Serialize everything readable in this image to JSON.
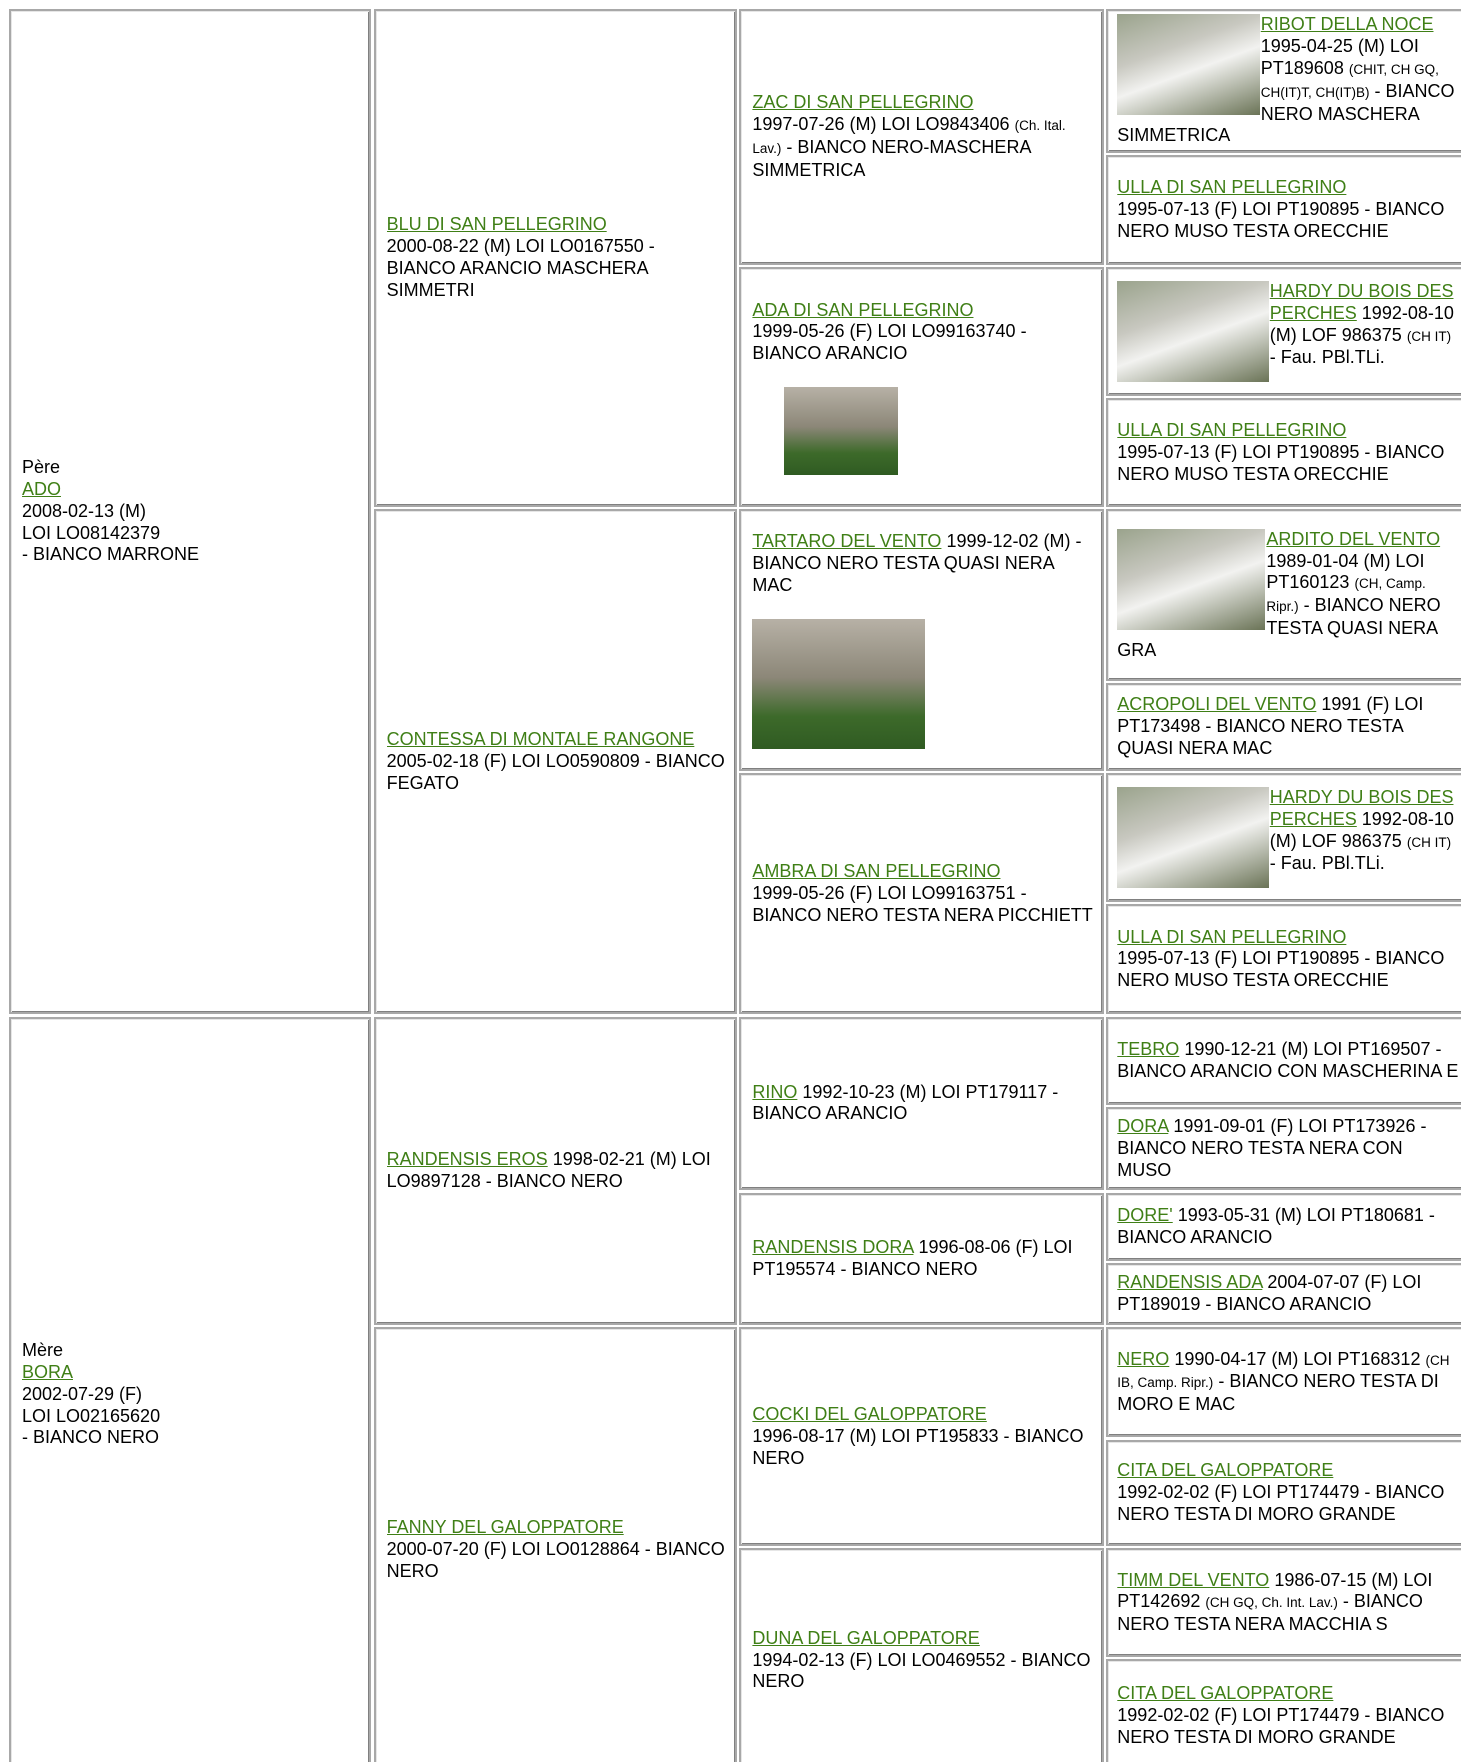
{
  "pedigree": {
    "cells": [
      {
        "label": "Père",
        "name": "ADO",
        "lines": [
          "2008-02-13 (M)",
          "LOI LO08142379",
          "- BIANCO MARRONE"
        ]
      },
      {
        "name": "BLU DI SAN PELLEGRINO",
        "info": "2000-08-22 (M) LOI LO0167550 - BIANCO ARANCIO MASCHERA SIMMETRI"
      },
      {
        "name": "ZAC DI SAN PELLEGRINO",
        "info": "1997-07-26 (M) LOI LO9843406",
        "titles": "(Ch. Ital. Lav.)",
        "rest": "- BIANCO NERO-MASCHERA SIMMETRICA"
      },
      {
        "name": "RIBOT DELLA NOCE",
        "info": "1995-04-25 (M) LOI PT189608",
        "titles": "(CHIT, CH GQ, CH(IT)T, CH(IT)B)",
        "rest": "- BIANCO NERO MASCHERA SIMMETRICA"
      },
      {
        "name": "ULLA DI SAN PELLEGRINO",
        "info": "1995-07-13 (F) LOI PT190895 - BIANCO NERO MUSO TESTA ORECCHIE"
      },
      {
        "name": "ADA DI SAN PELLEGRINO",
        "info": "1999-05-26 (F) LOI LO99163740 - BIANCO ARANCIO"
      },
      {
        "name": "HARDY DU BOIS DES PERCHES",
        "info": "1992-08-10 (M) LOF 986375",
        "titles": "(CH IT)",
        "rest": "- Fau. PBl.TLi."
      },
      {
        "name": "ULLA DI SAN PELLEGRINO",
        "info": "1995-07-13 (F) LOI PT190895 - BIANCO NERO MUSO TESTA ORECCHIE"
      },
      {
        "name": "CONTESSA DI MONTALE RANGONE",
        "info": "2005-02-18 (F) LOI LO0590809 - BIANCO FEGATO"
      },
      {
        "name": "TARTARO DEL VENTO",
        "info": "1999-12-02 (M) - BIANCO NERO TESTA QUASI NERA MAC"
      },
      {
        "name": "ARDITO DEL VENTO",
        "info": "1989-01-04 (M) LOI PT160123",
        "titles": "(CH, Camp. Ripr.)",
        "rest": "- BIANCO NERO TESTA QUASI NERA GRA"
      },
      {
        "name": "ACROPOLI DEL VENTO",
        "info": "1991 (F) LOI PT173498 - BIANCO NERO TESTA QUASI NERA MAC"
      },
      {
        "name": "AMBRA DI SAN PELLEGRINO",
        "info": "1999-05-26 (F) LOI LO99163751 - BIANCO NERO TESTA NERA PICCHIETT"
      },
      {
        "name": "HARDY DU BOIS DES PERCHES",
        "info": "1992-08-10 (M) LOF 986375",
        "titles": "(CH IT)",
        "rest": "- Fau. PBl.TLi."
      },
      {
        "name": "ULLA DI SAN PELLEGRINO",
        "info": "1995-07-13 (F) LOI PT190895 - BIANCO NERO MUSO TESTA ORECCHIE"
      },
      {
        "label": "Mère",
        "name": "BORA",
        "lines": [
          "2002-07-29 (F)",
          "LOI LO02165620",
          "- BIANCO NERO"
        ]
      },
      {
        "name": "RANDENSIS EROS",
        "info": "1998-02-21 (M) LOI LO9897128 - BIANCO NERO"
      },
      {
        "name": "RINO",
        "info": "1992-10-23 (M) LOI PT179117 - BIANCO ARANCIO"
      },
      {
        "name": "TEBRO",
        "info": "1990-12-21 (M) LOI PT169507 - BIANCO ARANCIO CON MASCHERINA E"
      },
      {
        "name": "DORA",
        "info": "1991-09-01 (F) LOI PT173926 - BIANCO NERO TESTA NERA CON MUSO"
      },
      {
        "name": "RANDENSIS DORA",
        "info": "1996-08-06 (F) LOI PT195574 - BIANCO NERO"
      },
      {
        "name": "DORE'",
        "info": "1993-05-31 (M) LOI PT180681 - BIANCO ARANCIO"
      },
      {
        "name": "RANDENSIS ADA",
        "info": "2004-07-07 (F) LOI PT189019 - BIANCO ARANCIO"
      },
      {
        "name": "FANNY DEL GALOPPATORE",
        "info": "2000-07-20 (F) LOI LO0128864 - BIANCO NERO"
      },
      {
        "name": "COCKI DEL GALOPPATORE",
        "info": "1996-08-17 (M) LOI PT195833 - BIANCO NERO"
      },
      {
        "name": "NERO",
        "info": "1990-04-17 (M) LOI PT168312",
        "titles": "(CH IB, Camp. Ripr.)",
        "rest": "- BIANCO NERO TESTA DI MORO E MAC"
      },
      {
        "name": "CITA DEL GALOPPATORE",
        "info": "1992-02-02 (F) LOI PT174479 - BIANCO NERO TESTA DI MORO GRANDE"
      },
      {
        "name": "DUNA DEL GALOPPATORE",
        "info": "1994-02-13 (F) LOI LO0469552 - BIANCO NERO"
      },
      {
        "name": "TIMM DEL VENTO",
        "info": "1986-07-15 (M) LOI PT142692",
        "titles": "(CH GQ, Ch. Int. Lav.)",
        "rest": "- BIANCO NERO TESTA NERA MACCHIA S"
      },
      {
        "name": "CITA DEL GALOPPATORE",
        "info": "1992-02-02 (F) LOI PT174479 - BIANCO NERO TESTA DI MORO GRANDE"
      }
    ]
  }
}
